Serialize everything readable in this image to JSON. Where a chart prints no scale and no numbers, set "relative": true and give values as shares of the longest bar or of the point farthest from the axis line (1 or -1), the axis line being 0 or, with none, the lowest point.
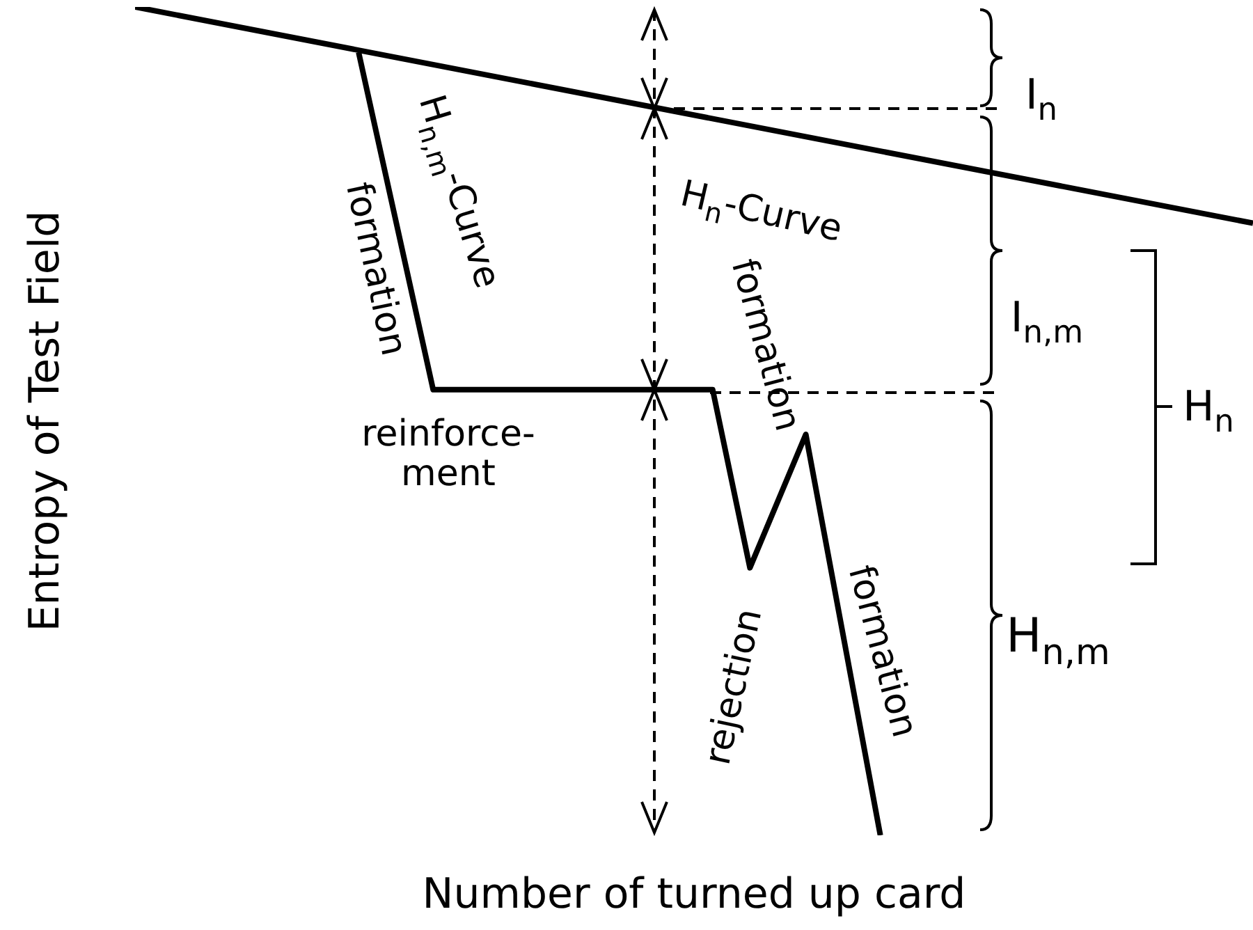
{
  "chart_data": {
    "type": "line",
    "xlabel": "Number of turned up card",
    "ylabel": "Entropy of Test Field",
    "relative": true,
    "marker": "none",
    "line_style": "solid",
    "categories": [
      null,
      null,
      null,
      null,
      null,
      null,
      null,
      null,
      null,
      null,
      null,
      null,
      null,
      null,
      null,
      null,
      null,
      null,
      null,
      null,
      null,
      null,
      null,
      null,
      null,
      null,
      null,
      null,
      null,
      null,
      null,
      null,
      null,
      null,
      null,
      null,
      null,
      null,
      null,
      null,
      null,
      null,
      null,
      null,
      null,
      null,
      null,
      null,
      null,
      null,
      null,
      null,
      null,
      null,
      null,
      null,
      null,
      null,
      null,
      null,
      null
    ],
    "series": [
      {
        "name": "H$_{n}$-Curve",
        "color": "#000000",
        "values": [
          1,
          null,
          null,
          null,
          null,
          null,
          null,
          null,
          null,
          null,
          null,
          null,
          null,
          null,
          null,
          null,
          null,
          null,
          null,
          null,
          null,
          null,
          null,
          null,
          null,
          null,
          null,
          null,
          null,
          null,
          null,
          null,
          null,
          null,
          null,
          null,
          null,
          null,
          null,
          null,
          null,
          null,
          null,
          null,
          null,
          null,
          null,
          null,
          null,
          null,
          null,
          null,
          null,
          null,
          null,
          null,
          null,
          null,
          null,
          null,
          0.739
        ]
      },
      {
        "name": "H$_{n,m}$-Curve",
        "color": "#000000",
        "values": [
          null,
          null,
          null,
          null,
          null,
          null,
          null,
          null,
          null,
          null,
          null,
          null,
          0.945,
          null,
          null,
          null,
          0.538,
          null,
          null,
          null,
          null,
          null,
          null,
          null,
          null,
          null,
          null,
          null,
          null,
          null,
          null,
          0.538,
          null,
          0.323,
          null,
          null,
          0.484,
          null,
          null,
          null,
          0,
          null,
          null,
          null,
          null,
          null,
          null,
          null,
          null,
          null,
          null,
          null,
          null,
          null,
          null,
          null,
          null,
          null,
          null,
          null,
          null
        ]
      }
    ],
    "annotations": [
      "I$_{n}$",
      "I$_{n,m}$",
      "H$_{n}$",
      "H$_{n,m}$",
      "formation",
      "formation",
      "formation",
      "reinforce-\nment",
      "rejection"
    ]
  }
}
